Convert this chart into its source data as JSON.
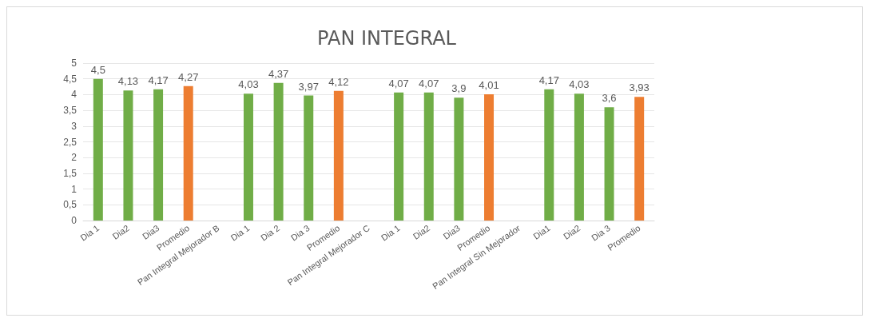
{
  "chart_data": {
    "type": "bar",
    "title": "PAN INTEGRAL",
    "categories": [
      "Dia 1",
      "Dia2",
      "Dia3",
      "Promedio",
      "Pan Integral Mejorador B",
      "Dia 1",
      "Dia 2",
      "Dia 3",
      "Promedio",
      "Pan Integral Mejorador C",
      "Dia 1",
      "Dia2",
      "Dia3",
      "Promedio",
      "Pan Integral Sin Mejorador",
      "Dia1",
      "Dia2",
      "Dia 3",
      "Promedio"
    ],
    "values": [
      4.5,
      4.13,
      4.17,
      4.27,
      null,
      4.03,
      4.37,
      3.97,
      4.12,
      null,
      4.07,
      4.07,
      3.9,
      4.01,
      null,
      4.17,
      4.03,
      3.6,
      3.93
    ],
    "value_labels": [
      "4,5",
      "4,13",
      "4,17",
      "4,27",
      null,
      "4,03",
      "4,37",
      "3,97",
      "4,12",
      null,
      "4,07",
      "4,07",
      "3,9",
      "4,01",
      null,
      "4,17",
      "4,03",
      "3,6",
      "3,93"
    ],
    "colors": [
      "#70ad47",
      "#70ad47",
      "#70ad47",
      "#ed7d31",
      null,
      "#70ad47",
      "#70ad47",
      "#70ad47",
      "#ed7d31",
      null,
      "#70ad47",
      "#70ad47",
      "#70ad47",
      "#ed7d31",
      null,
      "#70ad47",
      "#70ad47",
      "#70ad47",
      "#ed7d31"
    ],
    "ylim": [
      0,
      5
    ],
    "yticks": [
      0,
      {
        "value": 0.5,
        "label": "0,5"
      },
      1,
      {
        "value": 1.5,
        "label": "1,5"
      },
      2,
      {
        "value": 2.5,
        "label": "2,5"
      },
      3,
      {
        "value": 3.5,
        "label": "3,5"
      },
      4,
      {
        "value": 4.5,
        "label": "4,5"
      },
      5
    ],
    "grid": "y"
  }
}
